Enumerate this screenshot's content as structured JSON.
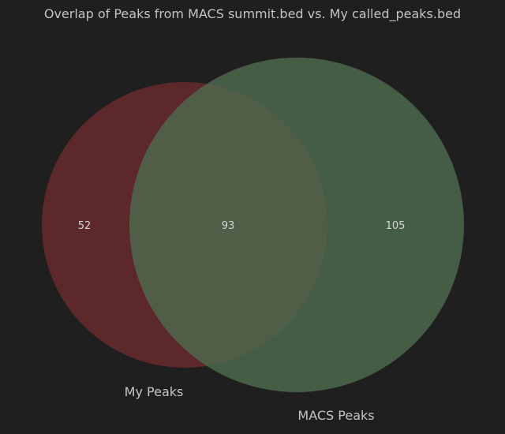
{
  "title": "Overlap of Peaks from MACS summit.bed vs. My called_peaks.bed",
  "venn": {
    "sets": [
      {
        "name": "My Peaks",
        "color": "#6b2a2c"
      },
      {
        "name": "MACS Peaks",
        "color": "#4f6b4f"
      }
    ],
    "regions": {
      "only_my_peaks": "52",
      "both": "93",
      "only_macs_peaks": "105"
    },
    "background": "#1f1f1f"
  }
}
